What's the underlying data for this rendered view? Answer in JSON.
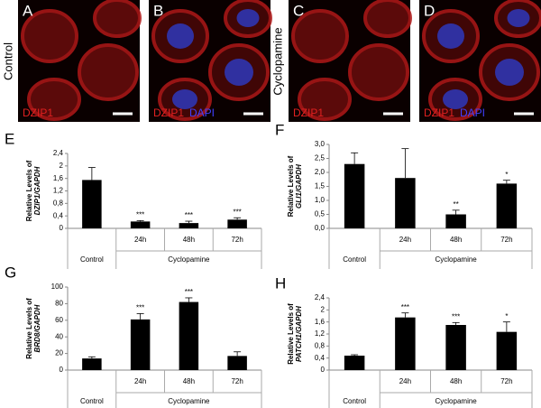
{
  "images": [
    {
      "letter": "A",
      "labels": [
        "DZIP1"
      ]
    },
    {
      "letter": "B",
      "labels": [
        "DZIP1",
        "DAPI"
      ]
    },
    {
      "letter": "C",
      "labels": [
        "DZIP1"
      ]
    },
    {
      "letter": "D",
      "labels": [
        "DZIP1",
        "DAPI"
      ]
    }
  ],
  "row_labels": [
    "Control",
    "Cyclopamine"
  ],
  "chart_data": [
    {
      "type": "bar",
      "letter": "E",
      "ylabel": "Relative Levels of",
      "ylabel_gene": "DZIP1/GAPDH",
      "categories": [
        "Control",
        "24h",
        "48h",
        "72h"
      ],
      "group_label": "Cyclopamine",
      "color": "#000000",
      "values": [
        1.55,
        0.22,
        0.17,
        0.28
      ],
      "errors": [
        0.4,
        0.03,
        0.06,
        0.06
      ],
      "annotations": [
        null,
        "***",
        "***",
        "***"
      ],
      "ylim": [
        0,
        2.4
      ],
      "yticks": [
        {
          "value": 0,
          "label": "0"
        },
        {
          "value": 0.4,
          "label": "0,4"
        },
        {
          "value": 0.8,
          "label": "0,8"
        },
        {
          "value": 1.2,
          "label": "1,2"
        },
        {
          "value": 1.6,
          "label": "1,6"
        },
        {
          "value": 2,
          "label": "2"
        },
        {
          "value": 2.4,
          "label": "2,4"
        }
      ]
    },
    {
      "type": "bar",
      "letter": "F",
      "ylabel": "Relative Levels of",
      "ylabel_gene": "GLI1/GAPDH",
      "categories": [
        "Control",
        "24h",
        "48h",
        "72h"
      ],
      "group_label": "Cyclopamine",
      "color": "#000000",
      "values": [
        2.3,
        1.8,
        0.5,
        1.6
      ],
      "errors": [
        0.4,
        1.05,
        0.15,
        0.12
      ],
      "annotations": [
        null,
        null,
        "**",
        "*"
      ],
      "ylim": [
        0,
        3
      ],
      "yticks": [
        {
          "value": 0,
          "label": "0,0"
        },
        {
          "value": 0.5,
          "label": "0,5"
        },
        {
          "value": 1,
          "label": "1,0"
        },
        {
          "value": 1.5,
          "label": "1,5"
        },
        {
          "value": 2,
          "label": "2,0"
        },
        {
          "value": 2.5,
          "label": "2,5"
        },
        {
          "value": 3,
          "label": "3,0"
        }
      ]
    },
    {
      "type": "bar",
      "letter": "G",
      "ylabel": "Relative Levels of",
      "ylabel_gene": "BRD8/GAPDH",
      "categories": [
        "Control",
        "24h",
        "48h",
        "72h"
      ],
      "group_label": "Cyclopamine",
      "color": "#000000",
      "values": [
        14,
        61,
        82,
        17
      ],
      "errors": [
        2,
        7,
        5,
        5
      ],
      "annotations": [
        null,
        "***",
        "***",
        null
      ],
      "ylim": [
        0,
        100
      ],
      "yticks": [
        0,
        20,
        40,
        60,
        80,
        100
      ]
    },
    {
      "type": "bar",
      "letter": "H",
      "ylabel": "Relative Levels of",
      "ylabel_gene": "PATCH1/GAPDH",
      "categories": [
        "Control",
        "24h",
        "48h",
        "72h"
      ],
      "group_label": "Cyclopamine",
      "color": "#000000",
      "values": [
        0.48,
        1.75,
        1.5,
        1.27
      ],
      "errors": [
        0.03,
        0.15,
        0.08,
        0.33
      ],
      "annotations": [
        null,
        "***",
        "***",
        "*"
      ],
      "ylim": [
        0,
        2.4
      ],
      "yticks": [
        {
          "value": 0,
          "label": "0"
        },
        {
          "value": 0.4,
          "label": "0,4"
        },
        {
          "value": 0.8,
          "label": "0,8"
        },
        {
          "value": 1.2,
          "label": "1,2"
        },
        {
          "value": 1.6,
          "label": "1,6"
        },
        {
          "value": 2,
          "label": "2"
        },
        {
          "value": 2.4,
          "label": "2,4"
        }
      ]
    }
  ]
}
